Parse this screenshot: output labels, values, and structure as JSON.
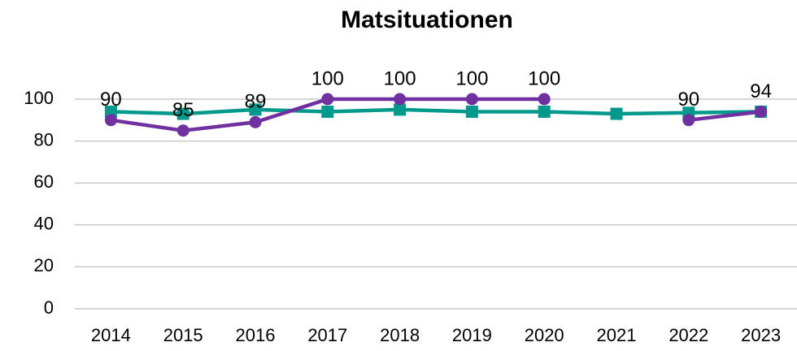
{
  "chart_data": {
    "type": "line",
    "title": "Matsituationen",
    "categories": [
      "2014",
      "2015",
      "2016",
      "2017",
      "2018",
      "2019",
      "2020",
      "2021",
      "2022",
      "2023"
    ],
    "series": [
      {
        "color": "#00998c",
        "marker": "square",
        "values": [
          94,
          93,
          95,
          94,
          95,
          94,
          94,
          93,
          93.5,
          94
        ]
      },
      {
        "color": "#7030a0",
        "marker": "circle",
        "data_labels": true,
        "values": [
          90,
          85,
          89,
          100,
          100,
          100,
          100,
          null,
          90,
          94
        ]
      }
    ],
    "ylim": [
      0,
      100
    ],
    "yticks": [
      0,
      20,
      40,
      60,
      80,
      100
    ],
    "grid": true
  }
}
